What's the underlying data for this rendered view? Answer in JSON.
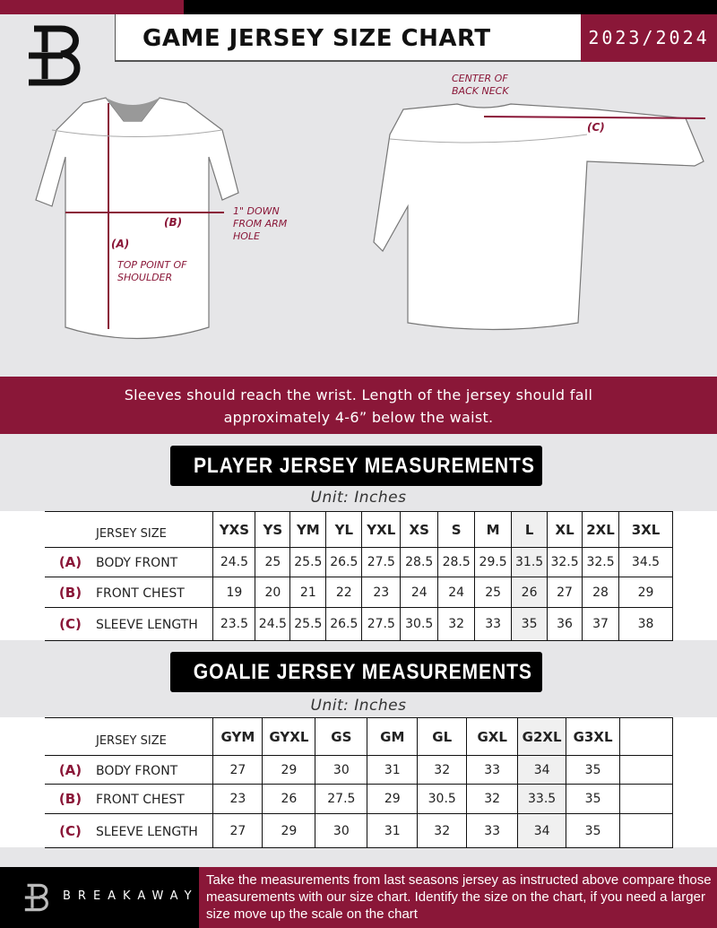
{
  "header": {
    "title": "GAME JERSEY SIZE CHART",
    "season": "2023/2024"
  },
  "diagram": {
    "front_labels": {
      "a": "(A)",
      "b": "(B)",
      "a_note": "TOP POINT OF SHOULDER",
      "b_note": "1\" DOWN FROM ARM HOLE"
    },
    "back_labels": {
      "c": "(C)",
      "c_note": "CENTER OF BACK NECK"
    }
  },
  "banner": {
    "line1": "Sleeves should reach the wrist. Length of the jersey should fall",
    "line2": "approximately 4-6” below the waist."
  },
  "player": {
    "title": "PLAYER JERSEY MEASUREMENTS",
    "unit": "Unit: Inches",
    "size_header": "JERSEY SIZE",
    "sizes": [
      "YXS",
      "YS",
      "YM",
      "YL",
      "YXL",
      "XS",
      "S",
      "M",
      "L",
      "XL",
      "2XL",
      "3XL"
    ],
    "rows": [
      {
        "letter": "(A)",
        "label": "BODY FRONT",
        "values": [
          "24.5",
          "25",
          "25.5",
          "26.5",
          "27.5",
          "28.5",
          "28.5",
          "29.5",
          "31.5",
          "32.5",
          "32.5",
          "34.5"
        ]
      },
      {
        "letter": "(B)",
        "label": "FRONT CHEST",
        "values": [
          "19",
          "20",
          "21",
          "22",
          "23",
          "24",
          "24",
          "25",
          "26",
          "27",
          "28",
          "29"
        ]
      },
      {
        "letter": "(C)",
        "label": "SLEEVE LENGTH",
        "values": [
          "23.5",
          "24.5",
          "25.5",
          "26.5",
          "27.5",
          "30.5",
          "32",
          "33",
          "35",
          "36",
          "37",
          "38"
        ]
      }
    ]
  },
  "goalie": {
    "title": "GOALIE JERSEY MEASUREMENTS",
    "unit": "Unit: Inches",
    "size_header": "JERSEY SIZE",
    "sizes": [
      "GYM",
      "GYXL",
      "GS",
      "GM",
      "GL",
      "GXL",
      "G2XL",
      "G3XL",
      ""
    ],
    "rows": [
      {
        "letter": "(A)",
        "label": "BODY FRONT",
        "values": [
          "27",
          "29",
          "30",
          "31",
          "32",
          "33",
          "34",
          "35",
          ""
        ]
      },
      {
        "letter": "(B)",
        "label": "FRONT CHEST",
        "values": [
          "23",
          "26",
          "27.5",
          "29",
          "30.5",
          "32",
          "33.5",
          "35",
          ""
        ]
      },
      {
        "letter": "(C)",
        "label": "SLEEVE LENGTH",
        "values": [
          "27",
          "29",
          "30",
          "31",
          "32",
          "33",
          "34",
          "35",
          ""
        ]
      }
    ]
  },
  "footer": {
    "brand": "BREAKAWAY",
    "instructions": "Take the measurements from last seasons jersey as instructed above compare those measurements  with our size chart. Identify the size on the chart, if you need a larger size move up the scale on the chart"
  },
  "colors": {
    "accent": "#8a1738",
    "background": "#e6e6e8",
    "dark": "#000000"
  }
}
